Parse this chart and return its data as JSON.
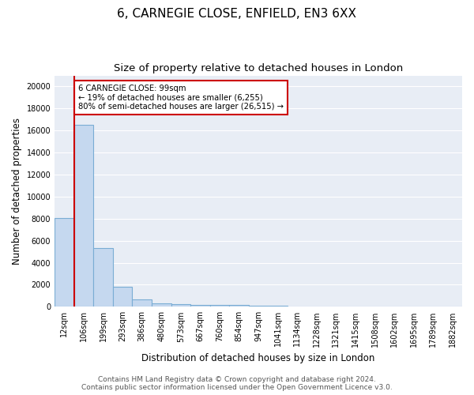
{
  "title1": "6, CARNEGIE CLOSE, ENFIELD, EN3 6XX",
  "title2": "Size of property relative to detached houses in London",
  "xlabel": "Distribution of detached houses by size in London",
  "ylabel": "Number of detached properties",
  "categories": [
    "12sqm",
    "106sqm",
    "199sqm",
    "293sqm",
    "386sqm",
    "480sqm",
    "573sqm",
    "667sqm",
    "760sqm",
    "854sqm",
    "947sqm",
    "1041sqm",
    "1134sqm",
    "1228sqm",
    "1321sqm",
    "1415sqm",
    "1508sqm",
    "1602sqm",
    "1695sqm",
    "1789sqm",
    "1882sqm"
  ],
  "values": [
    8050,
    16500,
    5300,
    1850,
    700,
    300,
    220,
    200,
    190,
    150,
    80,
    60,
    40,
    30,
    20,
    15,
    10,
    8,
    5,
    5,
    3
  ],
  "bar_color": "#c5d8ef",
  "bar_edge_color": "#7aadd4",
  "background_color": "#e8edf5",
  "grid_color": "#ffffff",
  "annotation_text": "6 CARNEGIE CLOSE: 99sqm\n← 19% of detached houses are smaller (6,255)\n80% of semi-detached houses are larger (26,515) →",
  "annotation_box_color": "#ffffff",
  "annotation_box_edge": "#cc0000",
  "vline_x_index": 0,
  "vline_color": "#cc0000",
  "ylim": [
    0,
    21000
  ],
  "yticks": [
    0,
    2000,
    4000,
    6000,
    8000,
    10000,
    12000,
    14000,
    16000,
    18000,
    20000
  ],
  "footnote": "Contains HM Land Registry data © Crown copyright and database right 2024.\nContains public sector information licensed under the Open Government Licence v3.0.",
  "title_fontsize": 11,
  "subtitle_fontsize": 9.5,
  "tick_fontsize": 7,
  "ylabel_fontsize": 8.5,
  "xlabel_fontsize": 8.5,
  "footnote_fontsize": 6.5
}
